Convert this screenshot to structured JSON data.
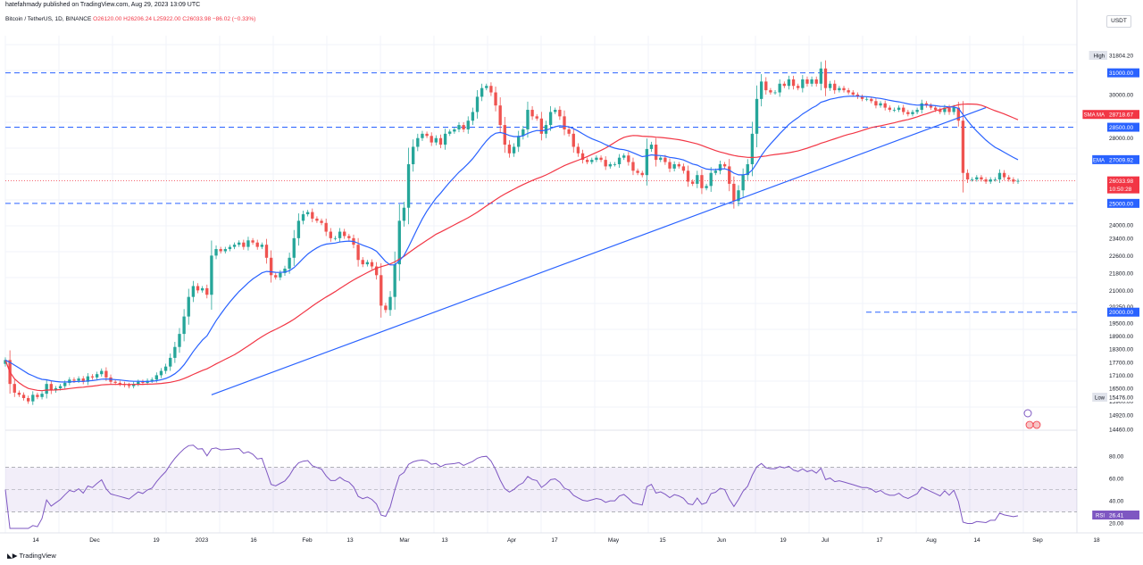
{
  "header": {
    "published_line": "hatefahmady published on TradingView.com, Aug 29, 2023 13:09 UTC",
    "symbol": "Bitcoin / TetherUS, 1D, BINANCE",
    "ohlc": "O26120.00  H26206.24  L25922.00  C26033.98  −86.02 (−0.33%)",
    "currency": "USDT",
    "footer_brand": "TradingView"
  },
  "colors": {
    "up": "#26a69a",
    "down": "#ef5350",
    "ema": "#2962ff",
    "sma": "#f23645",
    "trendline": "#2962ff",
    "level": "#2962ff",
    "rsi": "#7e57c2"
  },
  "chart_data": [
    {
      "type": "candlestick",
      "x_ticks": [
        "14",
        "Dec",
        "19",
        "2023",
        "16",
        "Feb",
        "13",
        "Mar",
        "13",
        "Apr",
        "17",
        "May",
        "15",
        "Jun",
        "19",
        "Jul",
        "17",
        "Aug",
        "14",
        "Sep",
        "18"
      ],
      "y_ticks": [
        "31804.20",
        "30000.00",
        "28000.00",
        "24000.00",
        "23400.00",
        "22600.00",
        "21800.00",
        "21000.00",
        "20250.00",
        "19500.00",
        "18900.00",
        "18300.00",
        "17700.00",
        "17100.00",
        "16500.00",
        "15900.00",
        "14920.00",
        "14460.00"
      ],
      "series": [
        {
          "name": "EMA",
          "value": "27009.92"
        },
        {
          "name": "SMA MA",
          "value": "28718.67"
        }
      ],
      "price_tags": [
        {
          "label": "High",
          "value": "31804.20"
        },
        {
          "label": "",
          "value": "31000.00"
        },
        {
          "label": "",
          "value": "28500.00"
        },
        {
          "label": "",
          "value": "26033.98"
        },
        {
          "label": "",
          "value": "10:50:28"
        },
        {
          "label": "",
          "value": "25000.00"
        },
        {
          "label": "",
          "value": "20000.00"
        },
        {
          "label": "Low",
          "value": "15476.00"
        }
      ],
      "levels": [
        31000,
        28500,
        25000,
        20000
      ],
      "trendline": [
        [
          16200,
          "2022-12-30"
        ],
        [
          29400,
          "2023-08-24"
        ]
      ],
      "close": [
        17800,
        16700,
        16300,
        16200,
        16050,
        15900,
        16200,
        16100,
        16250,
        16700,
        16400,
        16500,
        16600,
        16750,
        16900,
        16850,
        16950,
        16800,
        17050,
        17000,
        17150,
        17300,
        17000,
        16800,
        16750,
        16700,
        16650,
        16600,
        16700,
        16800,
        16750,
        16850,
        16900,
        17100,
        17300,
        17500,
        17900,
        18400,
        19000,
        19800,
        20700,
        21200,
        21000,
        21100,
        20800,
        22600,
        22900,
        22800,
        22900,
        23000,
        23100,
        23200,
        23000,
        23300,
        23200,
        23000,
        23100,
        22500,
        21700,
        21600,
        21800,
        22000,
        22500,
        23400,
        24200,
        24500,
        24600,
        24300,
        24200,
        24100,
        23700,
        23400,
        23400,
        23700,
        23500,
        23400,
        23100,
        22400,
        22200,
        22300,
        22100,
        21700,
        20300,
        20100,
        20700,
        22200,
        24200,
        24800,
        26800,
        27600,
        28000,
        28200,
        28100,
        27800,
        28000,
        27700,
        28200,
        28300,
        28400,
        28600,
        28400,
        28800,
        29200,
        29900,
        30300,
        30400,
        30100,
        29500,
        28600,
        27700,
        27300,
        27600,
        28100,
        28400,
        29300,
        29000,
        28900,
        28200,
        28600,
        29200,
        29300,
        29000,
        28400,
        28200,
        27600,
        27300,
        27000,
        26900,
        27000,
        27100,
        27000,
        26700,
        26800,
        26800,
        27100,
        27200,
        26900,
        26500,
        26400,
        26300,
        27500,
        27700,
        27000,
        27100,
        26900,
        26600,
        26800,
        26700,
        26500,
        26000,
        25900,
        26300,
        25700,
        25800,
        26400,
        26500,
        26800,
        26700,
        25900,
        25100,
        25600,
        26300,
        26800,
        28200,
        29800,
        30600,
        30200,
        30100,
        30100,
        30500,
        30400,
        30700,
        30400,
        30300,
        30700,
        30500,
        30700,
        30500,
        31200,
        30300,
        30500,
        30200,
        30300,
        30200,
        30100,
        30000,
        29900,
        29800,
        29800,
        29700,
        29500,
        29600,
        29400,
        29300,
        29300,
        29400,
        29200,
        29100,
        29200,
        29300,
        29600,
        29500,
        29400,
        29300,
        29200,
        29400,
        29200,
        29400,
        28800,
        26400,
        26100,
        26100,
        26200,
        26100,
        26000,
        26100,
        26100,
        26400,
        26200,
        26100,
        26000,
        26033.98
      ],
      "rsi": {
        "name": "RSI",
        "value": "26.41",
        "ticks": [
          "80.00",
          "60.00",
          "40.00",
          "20.00"
        ],
        "bands": [
          70,
          50,
          30
        ]
      }
    }
  ]
}
